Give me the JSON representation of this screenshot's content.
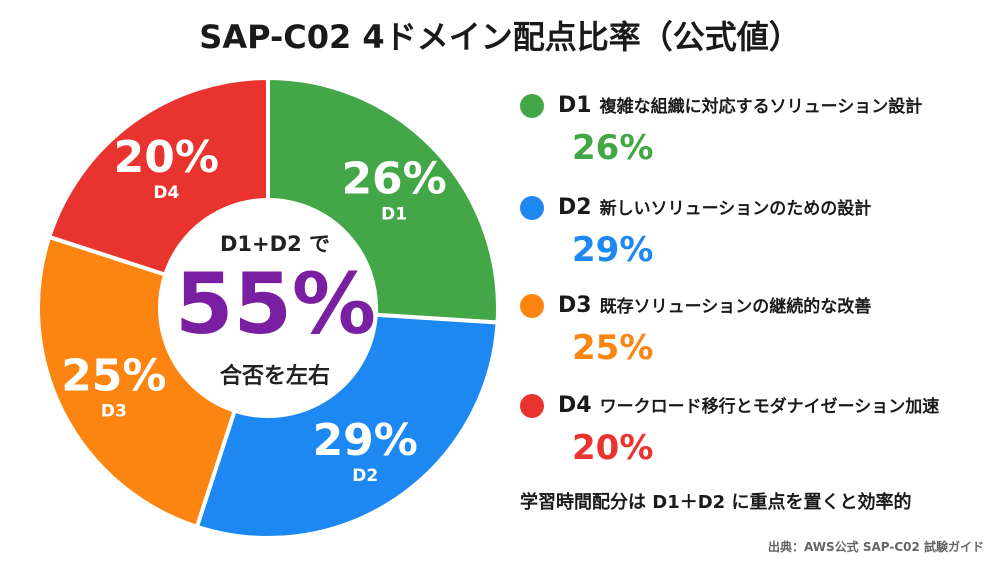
{
  "title": "SAP-C02 4ドメイン配点比率（公式値）",
  "center": {
    "line1": "D1+D2 で",
    "value": "55%",
    "line2": "合否を左右"
  },
  "chart_data": {
    "type": "pie",
    "title": "SAP-C02 4ドメイン配点比率（公式値）",
    "categories": [
      "D1",
      "D2",
      "D3",
      "D4"
    ],
    "values": [
      26,
      29,
      25,
      20
    ],
    "colors": [
      "#43a747",
      "#1e88f2",
      "#fb8510",
      "#e8332e"
    ],
    "slice_labels": [
      "26%",
      "29%",
      "25%",
      "20%"
    ]
  },
  "legend": [
    {
      "code": "D1",
      "label": "複雑な組織に対応するソリューション設計",
      "pct": "26%",
      "color": "#43a747"
    },
    {
      "code": "D2",
      "label": "新しいソリューションのための設計",
      "pct": "29%",
      "color": "#1e88f2"
    },
    {
      "code": "D3",
      "label": "既存ソリューションの継続的な改善",
      "pct": "25%",
      "color": "#fb8510"
    },
    {
      "code": "D4",
      "label": "ワークロード移行とモダナイゼーション加速",
      "pct": "20%",
      "color": "#e8332e"
    }
  ],
  "note": "学習時間配分は D1＋D2 に重点を置くと効率的",
  "source": "出典：AWS公式 SAP-C02 試験ガイド"
}
